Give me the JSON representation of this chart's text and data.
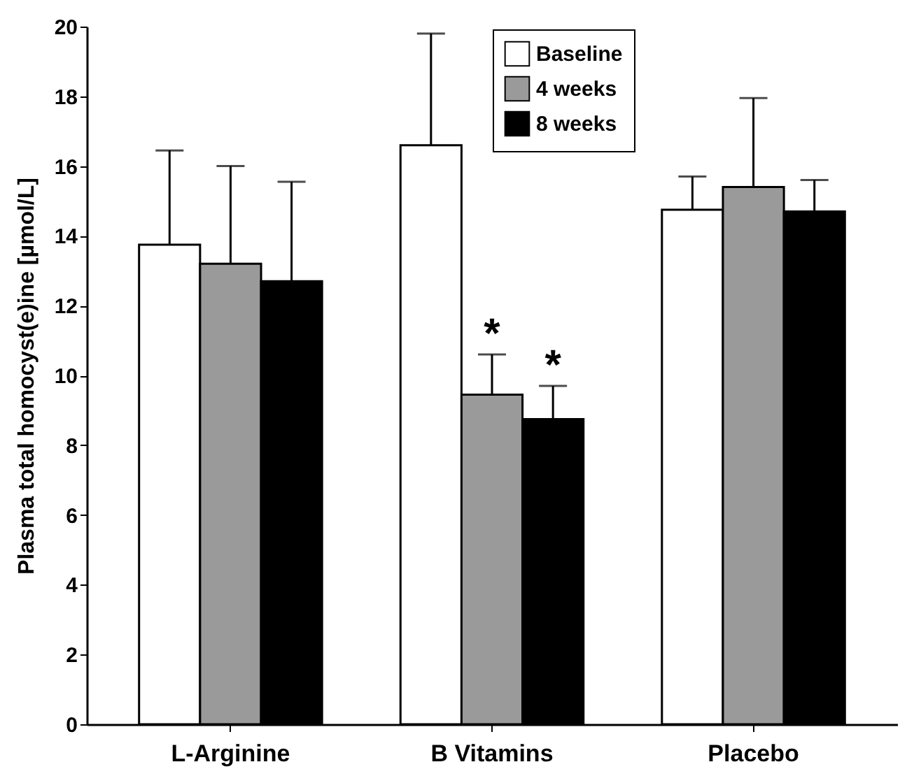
{
  "chart_data": {
    "type": "bar",
    "ylabel": "Plasma total homocyst(e)ine [µmol/L]",
    "categories": [
      "L-Arginine",
      "B Vitamins",
      "Placebo"
    ],
    "series": [
      {
        "name": "Baseline",
        "color": "#ffffff",
        "values": [
          13.75,
          16.6,
          14.75
        ],
        "errors": [
          [
            13.75,
            16.45
          ],
          [
            16.6,
            19.8
          ],
          [
            14.75,
            15.7
          ]
        ]
      },
      {
        "name": "4 weeks",
        "color": "#9a9a9a",
        "values": [
          13.2,
          9.45,
          15.4
        ],
        "errors": [
          [
            13.2,
            16.0
          ],
          [
            9.45,
            10.6
          ],
          [
            15.4,
            17.95
          ]
        ]
      },
      {
        "name": "8 weeks",
        "color": "#000000",
        "values": [
          12.7,
          8.75,
          14.7
        ],
        "errors": [
          [
            12.7,
            15.55
          ],
          [
            8.75,
            9.7
          ],
          [
            14.7,
            15.6
          ]
        ]
      }
    ],
    "annotations": [
      {
        "text": "*",
        "x": "B Vitamins",
        "y": 10.6
      },
      {
        "text": "*",
        "x": "B Vitamins",
        "y": 9.7
      }
    ],
    "ylim": [
      0,
      20
    ],
    "yticks": [
      0,
      2,
      4,
      6,
      8,
      10,
      12,
      14,
      16,
      18,
      20
    ],
    "grid": false,
    "legend": "top"
  }
}
